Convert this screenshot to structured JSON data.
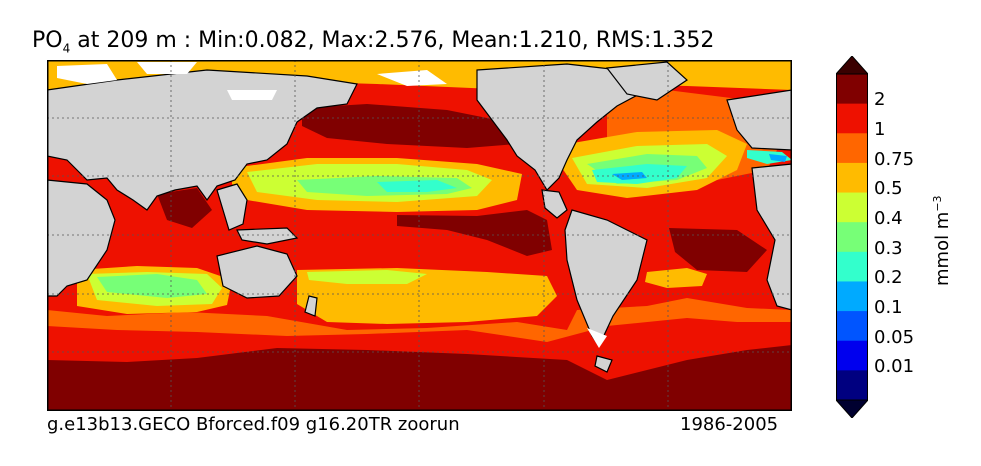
{
  "title": {
    "variable": "PO",
    "subscript": "4",
    "rest": " at 209 m : Min:0.082, Max:2.576, Mean:1.210, RMS:1.352"
  },
  "footer": {
    "case_name": "g.e13b13.GECO Bforced.f09 g16.20TR zoorun",
    "years": "1986-2005"
  },
  "colorbar": {
    "unit_label": "mmol m",
    "unit_exponent": "−3",
    "levels": [
      "2",
      "1",
      "0.75",
      "0.5",
      "0.4",
      "0.3",
      "0.2",
      "0.1",
      "0.05",
      "0.01"
    ],
    "colors": [
      "#800000",
      "#ee1100",
      "#ff6600",
      "#ffbb00",
      "#ccff33",
      "#77ff77",
      "#33ffcc",
      "#00aaff",
      "#0055ff",
      "#0000ee",
      "#000080"
    ]
  },
  "map_colors": {
    "land": "#d3d3d3",
    "ice": "#ffffff",
    "dark_red": "#800000",
    "red": "#ee1100",
    "orange": "#ff6600",
    "amber": "#ffbb00",
    "yellow_green": "#ccff33",
    "green": "#77ff77",
    "cyan": "#33ffcc",
    "light_blue": "#00aaff"
  }
}
